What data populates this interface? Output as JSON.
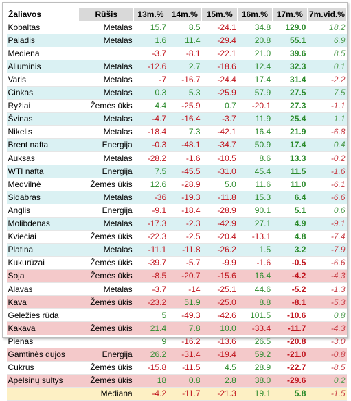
{
  "headers": {
    "name": "Žaliavos",
    "type": "Rūšis",
    "y13": "13m.%",
    "y14": "14m.%",
    "y15": "15m.%",
    "y16": "16m.%",
    "y17": "17m.%",
    "avg7": "7m.vid.%"
  },
  "rows": [
    {
      "name": "Kobaltas",
      "type": "Metalas",
      "y13": "15.7",
      "y14": "8.5",
      "y15": "-24.1",
      "y16": "34.8",
      "y17": "129.0",
      "avg7": "18.2",
      "hl": "none"
    },
    {
      "name": "Paladis",
      "type": "Metalas",
      "y13": "1.6",
      "y14": "11.4",
      "y15": "-29.4",
      "y16": "20.8",
      "y17": "55.1",
      "avg7": "6.9",
      "hl": "cyan"
    },
    {
      "name": "Mediena",
      "type": "",
      "y13": "-3.7",
      "y14": "-8.1",
      "y15": "-22.1",
      "y16": "21.0",
      "y17": "39.6",
      "avg7": "8.5",
      "hl": "none"
    },
    {
      "name": "Aliuminis",
      "type": "Metalas",
      "y13": "-12.6",
      "y14": "2.7",
      "y15": "-18.6",
      "y16": "12.4",
      "y17": "32.3",
      "avg7": "0.1",
      "hl": "cyan"
    },
    {
      "name": "Varis",
      "type": "Metalas",
      "y13": "-7",
      "y14": "-16.7",
      "y15": "-24.4",
      "y16": "17.4",
      "y17": "31.4",
      "avg7": "-2.2",
      "hl": "none"
    },
    {
      "name": "Cinkas",
      "type": "Metalas",
      "y13": "0.3",
      "y14": "5.3",
      "y15": "-25.9",
      "y16": "57.9",
      "y17": "27.5",
      "avg7": "7.5",
      "hl": "cyan"
    },
    {
      "name": "Ryžiai",
      "type": "Žemės ūkis",
      "y13": "4.4",
      "y14": "-25.9",
      "y15": "0.7",
      "y16": "-20.1",
      "y17": "27.3",
      "avg7": "-1.1",
      "hl": "none"
    },
    {
      "name": "Švinas",
      "type": "Metalas",
      "y13": "-4.7",
      "y14": "-16.4",
      "y15": "-3.7",
      "y16": "11.9",
      "y17": "25.4",
      "avg7": "1.1",
      "hl": "cyan"
    },
    {
      "name": "Nikelis",
      "type": "Metalas",
      "y13": "-18.4",
      "y14": "7.3",
      "y15": "-42.1",
      "y16": "16.4",
      "y17": "21.9",
      "avg7": "-6.8",
      "hl": "none"
    },
    {
      "name": "Brent nafta",
      "type": "Energija",
      "y13": "-0.3",
      "y14": "-48.1",
      "y15": "-34.7",
      "y16": "50.9",
      "y17": "17.4",
      "avg7": "0.4",
      "hl": "cyan"
    },
    {
      "name": "Auksas",
      "type": "Metalas",
      "y13": "-28.2",
      "y14": "-1.6",
      "y15": "-10.5",
      "y16": "8.6",
      "y17": "13.3",
      "avg7": "-0.2",
      "hl": "none"
    },
    {
      "name": "WTI nafta",
      "type": "Energija",
      "y13": "7.5",
      "y14": "-45.5",
      "y15": "-31.0",
      "y16": "45.4",
      "y17": "11.5",
      "avg7": "-1.6",
      "hl": "cyan"
    },
    {
      "name": "Medvilnė",
      "type": "Žemės ūkis",
      "y13": "12.6",
      "y14": "-28.9",
      "y15": "5.0",
      "y16": "11.6",
      "y17": "11.0",
      "avg7": "-6.1",
      "hl": "none"
    },
    {
      "name": "Sidabras",
      "type": "Metalas",
      "y13": "-36",
      "y14": "-19.3",
      "y15": "-11.8",
      "y16": "15.3",
      "y17": "6.4",
      "avg7": "-6.6",
      "hl": "cyan"
    },
    {
      "name": "Anglis",
      "type": "Energija",
      "y13": "-9.1",
      "y14": "-18.4",
      "y15": "-28.9",
      "y16": "90.1",
      "y17": "5.1",
      "avg7": "0.6",
      "hl": "none"
    },
    {
      "name": "Molibdenas",
      "type": "Metalas",
      "y13": "-17.3",
      "y14": "-2.3",
      "y15": "-42.9",
      "y16": "27.1",
      "y17": "4.9",
      "avg7": "-9.1",
      "hl": "cyan"
    },
    {
      "name": "Kviečiai",
      "type": "Žemės ūkis",
      "y13": "-22.3",
      "y14": "-2.5",
      "y15": "-20.4",
      "y16": "-13.1",
      "y17": "4.8",
      "avg7": "-7.4",
      "hl": "none"
    },
    {
      "name": "Platina",
      "type": "Metalas",
      "y13": "-11.1",
      "y14": "-11.8",
      "y15": "-26.2",
      "y16": "1.5",
      "y17": "3.2",
      "avg7": "-7.9",
      "hl": "cyan"
    },
    {
      "name": "Kukurūzai",
      "type": "Žemės ūkis",
      "y13": "-39.7",
      "y14": "-5.7",
      "y15": "-9.9",
      "y16": "-1.6",
      "y17": "-0.5",
      "avg7": "-6.6",
      "hl": "none"
    },
    {
      "name": "Soja",
      "type": "Žemės ūkis",
      "y13": "-8.5",
      "y14": "-20.7",
      "y15": "-15.6",
      "y16": "16.4",
      "y17": "-4.2",
      "avg7": "-4.3",
      "hl": "red"
    },
    {
      "name": "Alavas",
      "type": "Metalas",
      "y13": "-3.7",
      "y14": "-14",
      "y15": "-25.1",
      "y16": "44.6",
      "y17": "-5.2",
      "avg7": "-1.3",
      "hl": "none"
    },
    {
      "name": "Kava",
      "type": "Žemės ūkis",
      "y13": "-23.2",
      "y14": "51.9",
      "y15": "-25.0",
      "y16": "8.8",
      "y17": "-8.1",
      "avg7": "-5.3",
      "hl": "red"
    },
    {
      "name": "Geležies rūda",
      "type": "",
      "y13": "5",
      "y14": "-49.3",
      "y15": "-42.6",
      "y16": "101.5",
      "y17": "-10.6",
      "avg7": "0.8",
      "hl": "none"
    },
    {
      "name": "Kakava",
      "type": "Žemės ūkis",
      "y13": "21.4",
      "y14": "7.8",
      "y15": "10.0",
      "y16": "-33.4",
      "y17": "-11.7",
      "avg7": "-4.3",
      "hl": "red"
    },
    {
      "name": "Pienas",
      "type": "",
      "y13": "9",
      "y14": "-16.2",
      "y15": "-13.6",
      "y16": "26.5",
      "y17": "-20.8",
      "avg7": "-3.0",
      "hl": "none"
    },
    {
      "name": "Gamtinės dujos",
      "type": "Energija",
      "y13": "26.2",
      "y14": "-31.4",
      "y15": "-19.4",
      "y16": "59.2",
      "y17": "-21.0",
      "avg7": "-0.8",
      "hl": "red"
    },
    {
      "name": "Cukrus",
      "type": "Žemės ūkis",
      "y13": "-15.8",
      "y14": "-11.5",
      "y15": "4.5",
      "y16": "28.9",
      "y17": "-22.7",
      "avg7": "-8.5",
      "hl": "none"
    },
    {
      "name": "Apelsinų sultys",
      "type": "Žemės ūkis",
      "y13": "18",
      "y14": "0.8",
      "y15": "2.8",
      "y16": "38.0",
      "y17": "-29.6",
      "avg7": "0.2",
      "hl": "red"
    },
    {
      "name": "",
      "type": "Mediana",
      "y13": "-4.2",
      "y14": "-11.7",
      "y15": "-21.3",
      "y16": "19.1",
      "y17": "5.8",
      "avg7": "-1.5",
      "hl": "median"
    }
  ],
  "colors": {
    "positive": "#2b8a2b",
    "negative": "#c0141d",
    "cyan_row": "#daf1f3",
    "red_row": "#f4c9ca",
    "median_row": "#fdf0c4",
    "header_bg": "#d9d9d9"
  }
}
